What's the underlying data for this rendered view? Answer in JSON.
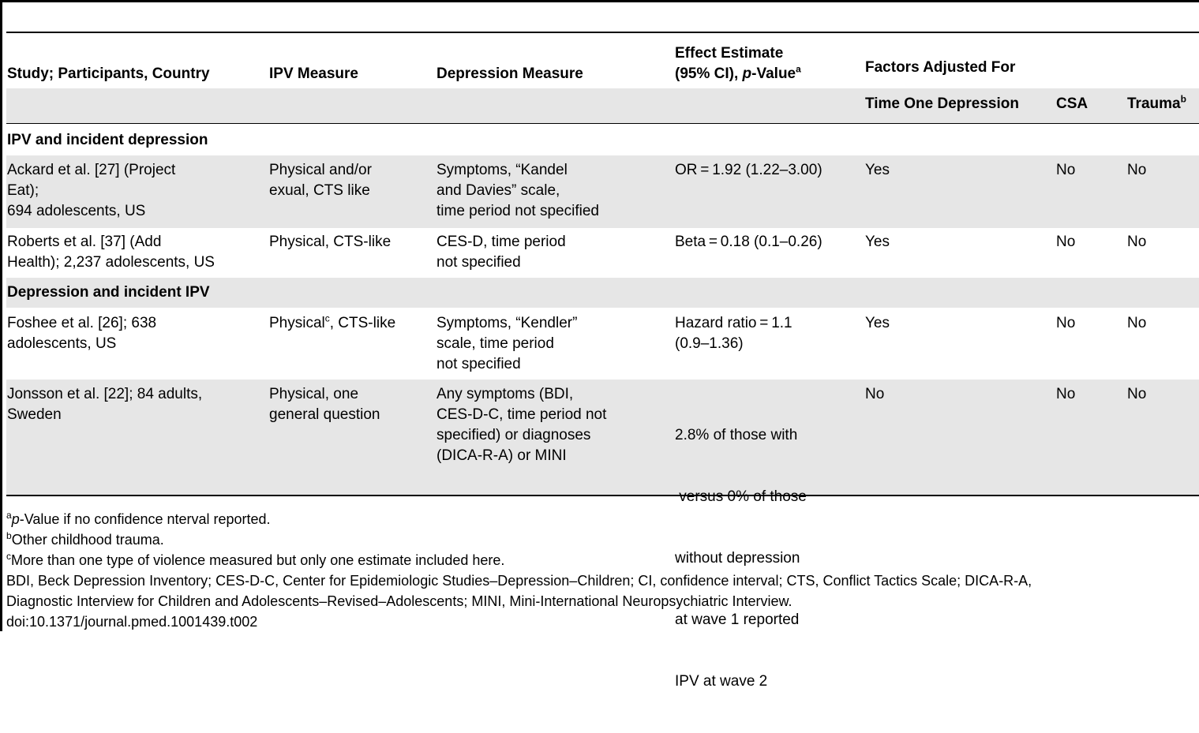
{
  "table": {
    "headers": {
      "study": "Study; Participants, Country",
      "ipv": "IPV Measure",
      "depression": "Depression Measure",
      "effect_line1": "Effect Estimate",
      "effect_line2_pre": "(95% CI), ",
      "effect_line2_p": "p",
      "effect_line2_post": "-Value",
      "effect_sup": "a",
      "factors": "Factors Adjusted For",
      "time_one": "Time One Depression",
      "csa": "CSA",
      "trauma": "Trauma",
      "trauma_sup": "b"
    },
    "sections": [
      {
        "title": "IPV and incident depression",
        "rows": [
          {
            "study": [
              "Ackard et al. [27] (Project",
              "Eat);",
              "694 adolescents, US"
            ],
            "ipv": [
              "Physical and/or",
              "exual, CTS like"
            ],
            "depression": [
              "Symptoms, “Kandel",
              "and Davies” scale,",
              "time period not specified"
            ],
            "effect": [
              "OR = 1.92 (1.22–3.00)"
            ],
            "time_one": "Yes",
            "csa": "No",
            "trauma": "No"
          },
          {
            "study": [
              "Roberts et al. [37] (Add",
              "Health); 2,237 adolescents, US"
            ],
            "ipv": [
              "Physical, CTS-like"
            ],
            "depression": [
              "CES-D, time period",
              "not specified"
            ],
            "effect": [
              "Beta = 0.18 (0.1–0.26)"
            ],
            "time_one": "Yes",
            "csa": "No",
            "trauma": "No"
          }
        ]
      },
      {
        "title": "Depression and incident IPV",
        "rows": [
          {
            "study": [
              "Foshee et al. [26]; 638",
              "adolescents, US"
            ],
            "ipv_pre": "Physical",
            "ipv_sup": "c",
            "ipv_post": ", CTS-like",
            "depression": [
              "Symptoms, “Kendler”",
              "scale, time period",
              "not specified"
            ],
            "effect": [
              "Hazard ratio = 1.1",
              "(0.9–1.36)"
            ],
            "time_one": "Yes",
            "csa": "No",
            "trauma": "No"
          },
          {
            "study": [
              "Jonsson et al. [22]; 84 adults,",
              "Sweden"
            ],
            "ipv": [
              "Physical, one",
              "general question"
            ],
            "depression": [
              "Any symptoms (BDI,",
              "CES-D-C, time period not",
              "specified) or diagnoses",
              "(DICA-R-A) or MINI"
            ],
            "effect": [
              "2.8% of those with",
              " versus 0% of those",
              "without depression",
              "at wave 1 reported",
              "IPV at wave 2"
            ],
            "time_one": "No",
            "csa": "No",
            "trauma": "No"
          }
        ]
      }
    ]
  },
  "footnotes": {
    "a_sup": "a",
    "a_italic": "p",
    "a_text": "-Value if no confidence nterval reported.",
    "b_sup": "b",
    "b_text": "Other childhood trauma.",
    "c_sup": "c",
    "c_text": "More than one type of violence measured but only one estimate included here.",
    "abbrev_line1": "BDI, Beck Depression Inventory; CES-D-C, Center for Epidemiologic Studies–Depression–Children; CI, confidence interval; CTS, Conflict Tactics Scale; DICA-R-A,",
    "abbrev_line2": "Diagnostic Interview for Children and Adolescents–Revised–Adolescents; MINI, Mini-International Neuropsychiatric Interview.",
    "doi": "doi:10.1371/journal.pmed.1001439.t002"
  }
}
